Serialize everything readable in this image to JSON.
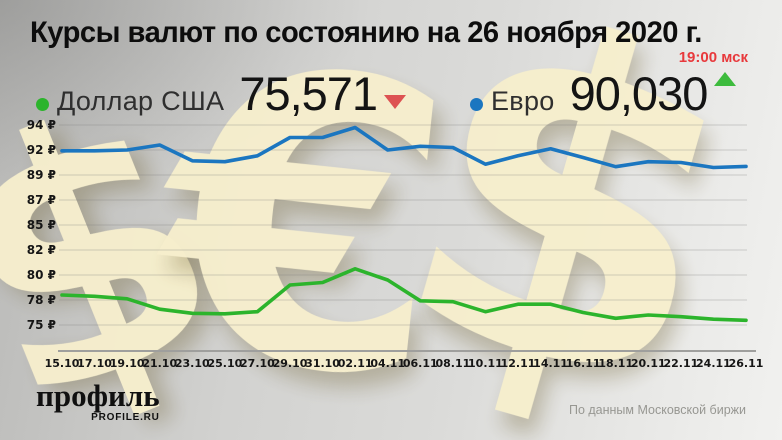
{
  "header": {
    "title": "Курсы валют по состоянию на 26 ноября 2020 г.",
    "time_note": "19:00 мск"
  },
  "legend": {
    "usd": {
      "label": "Доллар США",
      "value": "75,571",
      "trend": "down"
    },
    "eur": {
      "label": "Евро",
      "value": "90,030",
      "trend": "up"
    }
  },
  "colors": {
    "usd_green": "#2cb42c",
    "eur_blue": "#1b76c0",
    "down_red": "#dd5252",
    "up_green": "#3dbb3d",
    "time_red": "#e8393c"
  },
  "chart_data": {
    "type": "line",
    "title": "Курсы валют по состоянию на 26 ноября 2020 г.",
    "x": [
      "15.10",
      "17.10",
      "19.10",
      "21.10",
      "23.10",
      "25.10",
      "27.10",
      "29.10",
      "31.10",
      "02.11",
      "04.11",
      "06.11",
      "08.11",
      "10.11",
      "12.11",
      "14.11",
      "16.11",
      "18.11",
      "20.11",
      "22.11",
      "24.11",
      "26.11"
    ],
    "series": [
      {
        "name": "Доллар США",
        "color": "#2cb42c",
        "values": [
          78.4,
          78.3,
          78.1,
          76.9,
          76.4,
          76.35,
          76.6,
          79.2,
          79.4,
          80.5,
          79.6,
          77.9,
          77.8,
          76.6,
          77.5,
          77.5,
          76.5,
          75.8,
          76.2,
          76.0,
          75.7,
          75.57
        ]
      },
      {
        "name": "Евро",
        "color": "#1b76c0",
        "values": [
          91.9,
          91.9,
          92.0,
          92.4,
          90.7,
          90.6,
          91.3,
          93.0,
          93.0,
          93.8,
          92.0,
          92.3,
          92.2,
          90.3,
          91.3,
          92.1,
          91.1,
          90.0,
          90.6,
          90.5,
          89.9,
          90.03
        ]
      }
    ],
    "y_ticks": [
      94,
      92,
      89,
      87,
      85,
      82,
      80,
      78,
      75
    ],
    "y_tick_suffix": " ₽",
    "grid": true,
    "legend_position": "top",
    "xlabel": "",
    "ylabel": ""
  },
  "footer": {
    "logo_main": "профиль",
    "logo_sub": "PROFILE.RU",
    "source_note": "По данным Московской биржи"
  },
  "watermark": {
    "glyphs": [
      "$",
      "€",
      "$"
    ]
  }
}
